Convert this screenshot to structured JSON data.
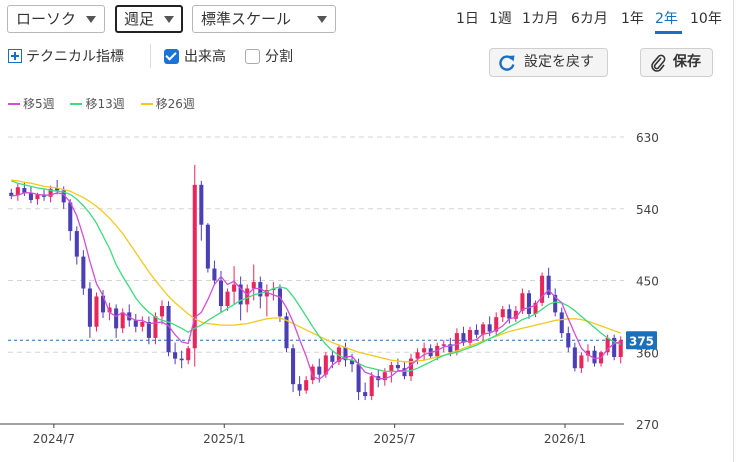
{
  "toolbar": {
    "chart_type": "ローソク",
    "interval": "週足",
    "scale": "標準スケール",
    "periods": [
      "1日",
      "1週",
      "1カ月",
      "6カ月",
      "1年",
      "2年",
      "10年"
    ],
    "active_period": "2年",
    "technical_label": "テクニカル指標",
    "volume_label": "出来高",
    "volume_checked": true,
    "split_label": "分割",
    "split_checked": false,
    "reset_label": "設定を戻す",
    "save_label": "保存"
  },
  "colors": {
    "up": "#e8265c",
    "down": "#4a3fb5",
    "ma5": "#d14fd6",
    "ma13": "#3ddc7d",
    "ma26": "#f2c91c",
    "accent": "#1a6fc0",
    "last_price_bg": "#1d6fb8"
  },
  "chart_data": {
    "type": "candlestick",
    "yticks": [
      630,
      540,
      450,
      360,
      270
    ],
    "ylim": [
      270,
      630
    ],
    "xtick_labels": [
      "2024/7",
      "2025/1",
      "2025/7",
      "2026/1"
    ],
    "last_price": 375,
    "legend": [
      "移5週",
      "移13週",
      "移26週"
    ],
    "candles": [
      [
        560,
        565,
        552,
        556
      ],
      [
        557,
        572,
        550,
        567
      ],
      [
        566,
        574,
        556,
        560
      ],
      [
        560,
        568,
        547,
        551
      ],
      [
        552,
        560,
        545,
        558
      ],
      [
        558,
        564,
        550,
        555
      ],
      [
        555,
        569,
        548,
        565
      ],
      [
        566,
        576,
        558,
        563
      ],
      [
        563,
        568,
        540,
        548
      ],
      [
        548,
        552,
        500,
        512
      ],
      [
        512,
        518,
        470,
        480
      ],
      [
        480,
        488,
        432,
        440
      ],
      [
        440,
        448,
        378,
        392
      ],
      [
        392,
        435,
        386,
        430
      ],
      [
        431,
        438,
        403,
        410
      ],
      [
        410,
        422,
        400,
        416
      ],
      [
        415,
        420,
        378,
        390
      ],
      [
        390,
        415,
        384,
        410
      ],
      [
        410,
        420,
        392,
        400
      ],
      [
        400,
        408,
        385,
        392
      ],
      [
        392,
        405,
        386,
        398
      ],
      [
        398,
        405,
        370,
        378
      ],
      [
        378,
        410,
        370,
        405
      ],
      [
        405,
        425,
        395,
        418
      ],
      [
        418,
        424,
        355,
        360
      ],
      [
        360,
        372,
        345,
        352
      ],
      [
        352,
        362,
        340,
        350
      ],
      [
        350,
        368,
        345,
        365
      ],
      [
        365,
        595,
        342,
        570
      ],
      [
        570,
        575,
        500,
        520
      ],
      [
        520,
        522,
        460,
        465
      ],
      [
        465,
        475,
        445,
        450
      ],
      [
        450,
        462,
        410,
        418
      ],
      [
        418,
        440,
        412,
        436
      ],
      [
        436,
        468,
        420,
        445
      ],
      [
        445,
        455,
        400,
        420
      ],
      [
        420,
        445,
        410,
        440
      ],
      [
        440,
        470,
        425,
        448
      ],
      [
        448,
        455,
        415,
        430
      ],
      [
        430,
        445,
        405,
        438
      ],
      [
        438,
        448,
        425,
        440
      ],
      [
        440,
        445,
        398,
        405
      ],
      [
        405,
        410,
        360,
        365
      ],
      [
        365,
        370,
        310,
        320
      ],
      [
        320,
        330,
        305,
        312
      ],
      [
        312,
        330,
        308,
        325
      ],
      [
        325,
        345,
        320,
        342
      ],
      [
        342,
        352,
        322,
        332
      ],
      [
        332,
        360,
        328,
        356
      ],
      [
        356,
        362,
        340,
        348
      ],
      [
        348,
        370,
        344,
        366
      ],
      [
        366,
        372,
        342,
        350
      ],
      [
        350,
        358,
        335,
        345
      ],
      [
        345,
        352,
        300,
        310
      ],
      [
        310,
        322,
        300,
        305
      ],
      [
        305,
        335,
        300,
        330
      ],
      [
        330,
        338,
        316,
        325
      ],
      [
        325,
        340,
        318,
        335
      ],
      [
        335,
        348,
        322,
        344
      ],
      [
        344,
        352,
        336,
        340
      ],
      [
        340,
        348,
        326,
        330
      ],
      [
        330,
        358,
        324,
        352
      ],
      [
        352,
        365,
        345,
        360
      ],
      [
        360,
        372,
        350,
        365
      ],
      [
        365,
        370,
        352,
        355
      ],
      [
        355,
        372,
        350,
        368
      ],
      [
        368,
        375,
        360,
        370
      ],
      [
        370,
        378,
        355,
        360
      ],
      [
        360,
        390,
        356,
        384
      ],
      [
        384,
        392,
        368,
        372
      ],
      [
        372,
        392,
        366,
        388
      ],
      [
        388,
        395,
        378,
        382
      ],
      [
        382,
        398,
        374,
        395
      ],
      [
        395,
        405,
        380,
        386
      ],
      [
        386,
        410,
        380,
        404
      ],
      [
        404,
        418,
        398,
        414
      ],
      [
        414,
        420,
        396,
        402
      ],
      [
        402,
        418,
        398,
        412
      ],
      [
        412,
        440,
        408,
        434
      ],
      [
        434,
        438,
        402,
        408
      ],
      [
        408,
        425,
        404,
        422
      ],
      [
        422,
        460,
        418,
        456
      ],
      [
        456,
        466,
        428,
        432
      ],
      [
        432,
        440,
        405,
        410
      ],
      [
        410,
        416,
        378,
        384
      ],
      [
        384,
        392,
        360,
        366
      ],
      [
        366,
        372,
        336,
        340
      ],
      [
        340,
        360,
        334,
        356
      ],
      [
        356,
        370,
        348,
        362
      ],
      [
        362,
        368,
        342,
        346
      ],
      [
        346,
        362,
        342,
        360
      ],
      [
        360,
        382,
        356,
        378
      ],
      [
        378,
        382,
        350,
        354
      ],
      [
        354,
        380,
        346,
        375
      ]
    ],
    "ma5": [
      556,
      557,
      560,
      560,
      558,
      557,
      557,
      560,
      558,
      548,
      531,
      505,
      474,
      446,
      431,
      410,
      405,
      410,
      404,
      400,
      400,
      396,
      397,
      398,
      393,
      382,
      373,
      371,
      404,
      410,
      426,
      445,
      455,
      445,
      449,
      440,
      432,
      440,
      440,
      435,
      432,
      429,
      416,
      398,
      376,
      355,
      330,
      326,
      333,
      344,
      350,
      354,
      355,
      345,
      335,
      332,
      327,
      327,
      330,
      337,
      337,
      344,
      351,
      357,
      360,
      362,
      367,
      368,
      370,
      373,
      374,
      376,
      383,
      384,
      388,
      393,
      402,
      404,
      414,
      416,
      419,
      430,
      438,
      429,
      422,
      402,
      383,
      365,
      357,
      352,
      353,
      364,
      371,
      373
    ],
    "ma13": [
      575,
      572,
      570,
      568,
      566,
      565,
      563,
      562,
      561,
      558,
      552,
      544,
      534,
      522,
      506,
      490,
      470,
      455,
      442,
      428,
      418,
      410,
      404,
      400,
      398,
      394,
      390,
      385,
      390,
      394,
      400,
      405,
      410,
      415,
      420,
      425,
      428,
      432,
      434,
      436,
      440,
      442,
      440,
      430,
      418,
      405,
      392,
      380,
      370,
      362,
      356,
      352,
      350,
      346,
      342,
      340,
      338,
      336,
      336,
      336,
      336,
      337,
      340,
      344,
      348,
      352,
      356,
      358,
      360,
      363,
      366,
      369,
      373,
      377,
      381,
      386,
      392,
      396,
      401,
      404,
      408,
      414,
      420,
      423,
      422,
      418,
      412,
      405,
      398,
      391,
      384,
      378,
      373,
      370
    ],
    "ma26": [
      576,
      575,
      573,
      572,
      570,
      568,
      567,
      566,
      564,
      562,
      558,
      554,
      549,
      543,
      536,
      528,
      519,
      509,
      497,
      485,
      473,
      461,
      450,
      440,
      430,
      422,
      415,
      408,
      402,
      398,
      396,
      395,
      394,
      394,
      394,
      395,
      396,
      398,
      400,
      402,
      403,
      403,
      400,
      396,
      392,
      388,
      384,
      380,
      376,
      372,
      369,
      366,
      363,
      360,
      358,
      356,
      354,
      352,
      350,
      349,
      348,
      348,
      349,
      350,
      352,
      354,
      356,
      359,
      362,
      365,
      368,
      371,
      374,
      377,
      380,
      383,
      386,
      388,
      390,
      392,
      394,
      396,
      398,
      400,
      401,
      402,
      402,
      401,
      399,
      396,
      393,
      390,
      387,
      384
    ]
  }
}
